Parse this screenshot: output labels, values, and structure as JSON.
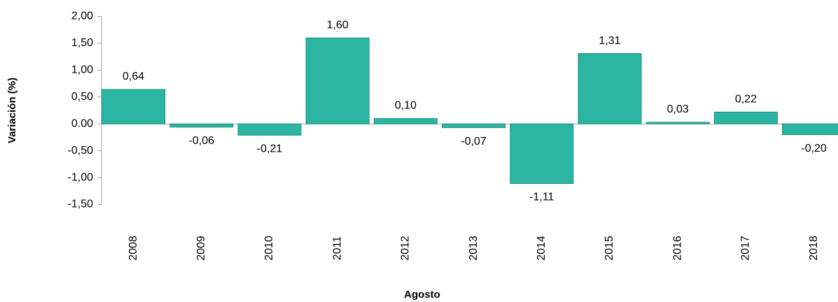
{
  "chart_data": {
    "type": "bar",
    "y_label": "Variación (%)",
    "x_label": "Agosto",
    "categories": [
      "2008",
      "2009",
      "2010",
      "2011",
      "2012",
      "2013",
      "2014",
      "2015",
      "2016",
      "2017",
      "2018"
    ],
    "values": [
      0.64,
      -0.06,
      -0.21,
      1.6,
      0.1,
      -0.07,
      -1.11,
      1.31,
      0.03,
      0.22,
      -0.2
    ],
    "value_labels": [
      "0,64",
      "-0,06",
      "-0,21",
      "1,60",
      "0,10",
      "-0,07",
      "-1,11",
      "1,31",
      "0,03",
      "0,22",
      "-0,20"
    ],
    "color": "#2cb5a2",
    "ylim": [
      -1.5,
      2.0
    ],
    "yticks": [
      {
        "value": 2.0,
        "label": "2,00"
      },
      {
        "value": 1.5,
        "label": "1,50"
      },
      {
        "value": 1.0,
        "label": "1,00"
      },
      {
        "value": 0.5,
        "label": "0,50"
      },
      {
        "value": 0.0,
        "label": "0.00"
      },
      {
        "value": -0.5,
        "label": "-0,50"
      },
      {
        "value": -1.0,
        "label": "-1,00"
      },
      {
        "value": -1.5,
        "label": "-1,50"
      }
    ],
    "grid": false
  }
}
